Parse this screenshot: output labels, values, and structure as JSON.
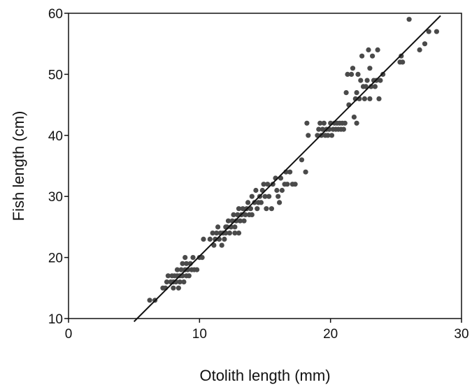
{
  "chart_data": {
    "type": "scatter",
    "title": "",
    "xlabel": "Otolith length (mm)",
    "ylabel": "Fish length (cm)",
    "xlim": [
      0,
      30
    ],
    "ylim": [
      10,
      60
    ],
    "xticks": [
      0,
      10,
      20,
      30
    ],
    "yticks": [
      10,
      20,
      30,
      40,
      50,
      60
    ],
    "grid": false,
    "legend": "none",
    "colors": {
      "points": "#4a4a4a",
      "line": "#111111",
      "axes": "#111111"
    },
    "fit_line": {
      "x": [
        5.0,
        28.4
      ],
      "y": [
        9.5,
        59.6
      ]
    },
    "series": [
      {
        "points": [
          [
            6.2,
            13
          ],
          [
            6.6,
            13
          ],
          [
            7.2,
            15
          ],
          [
            7.4,
            15
          ],
          [
            7.5,
            16
          ],
          [
            7.6,
            17
          ],
          [
            7.8,
            16
          ],
          [
            7.9,
            17
          ],
          [
            8.0,
            15
          ],
          [
            8.0,
            16
          ],
          [
            8.1,
            17
          ],
          [
            8.2,
            16
          ],
          [
            8.3,
            17
          ],
          [
            8.3,
            18
          ],
          [
            8.4,
            15
          ],
          [
            8.5,
            16
          ],
          [
            8.5,
            17
          ],
          [
            8.6,
            18
          ],
          [
            8.7,
            17
          ],
          [
            8.7,
            19
          ],
          [
            8.8,
            16
          ],
          [
            8.9,
            18
          ],
          [
            8.9,
            20
          ],
          [
            9.0,
            17
          ],
          [
            9.0,
            19
          ],
          [
            9.1,
            18
          ],
          [
            9.2,
            17
          ],
          [
            9.3,
            19
          ],
          [
            9.4,
            18
          ],
          [
            9.5,
            20
          ],
          [
            9.6,
            18
          ],
          [
            9.8,
            18
          ],
          [
            10.0,
            20
          ],
          [
            10.2,
            20
          ],
          [
            10.3,
            23
          ],
          [
            10.8,
            23
          ],
          [
            11.0,
            24
          ],
          [
            11.1,
            22
          ],
          [
            11.2,
            23
          ],
          [
            11.3,
            24
          ],
          [
            11.4,
            25
          ],
          [
            11.5,
            23
          ],
          [
            11.6,
            24
          ],
          [
            11.7,
            22
          ],
          [
            11.8,
            24
          ],
          [
            11.9,
            23
          ],
          [
            12.0,
            25
          ],
          [
            12.0,
            24
          ],
          [
            12.1,
            25
          ],
          [
            12.2,
            26
          ],
          [
            12.3,
            24
          ],
          [
            12.4,
            25
          ],
          [
            12.5,
            26
          ],
          [
            12.6,
            27
          ],
          [
            12.7,
            25
          ],
          [
            12.7,
            24
          ],
          [
            12.8,
            26
          ],
          [
            12.9,
            27
          ],
          [
            13.0,
            28
          ],
          [
            13.0,
            24
          ],
          [
            13.1,
            26
          ],
          [
            13.2,
            27
          ],
          [
            13.3,
            28
          ],
          [
            13.4,
            26
          ],
          [
            13.5,
            27
          ],
          [
            13.6,
            28
          ],
          [
            13.7,
            29
          ],
          [
            13.8,
            27
          ],
          [
            13.9,
            28
          ],
          [
            14.0,
            30
          ],
          [
            14.0,
            27
          ],
          [
            14.2,
            29
          ],
          [
            14.3,
            31
          ],
          [
            14.4,
            28
          ],
          [
            14.5,
            29
          ],
          [
            14.6,
            30
          ],
          [
            14.7,
            29
          ],
          [
            14.8,
            31
          ],
          [
            14.9,
            32
          ],
          [
            15.0,
            30
          ],
          [
            15.1,
            28
          ],
          [
            15.2,
            32
          ],
          [
            15.3,
            30
          ],
          [
            15.5,
            28
          ],
          [
            15.6,
            32
          ],
          [
            15.8,
            33
          ],
          [
            15.9,
            31
          ],
          [
            16.0,
            30
          ],
          [
            16.1,
            29
          ],
          [
            16.2,
            33
          ],
          [
            16.3,
            31
          ],
          [
            16.5,
            32
          ],
          [
            16.6,
            34
          ],
          [
            16.7,
            32
          ],
          [
            16.9,
            34
          ],
          [
            17.1,
            32
          ],
          [
            17.3,
            32
          ],
          [
            17.8,
            36
          ],
          [
            18.1,
            34
          ],
          [
            18.2,
            42
          ],
          [
            18.3,
            40
          ],
          [
            19.0,
            40
          ],
          [
            19.1,
            41
          ],
          [
            19.2,
            42
          ],
          [
            19.3,
            40
          ],
          [
            19.4,
            41
          ],
          [
            19.5,
            42
          ],
          [
            19.6,
            40
          ],
          [
            19.7,
            41
          ],
          [
            19.8,
            40
          ],
          [
            19.9,
            41
          ],
          [
            20.0,
            42
          ],
          [
            20.1,
            40
          ],
          [
            20.2,
            41
          ],
          [
            20.3,
            42
          ],
          [
            20.4,
            41
          ],
          [
            20.5,
            42
          ],
          [
            20.6,
            41
          ],
          [
            20.7,
            42
          ],
          [
            20.8,
            41
          ],
          [
            20.9,
            42
          ],
          [
            21.0,
            41
          ],
          [
            21.1,
            42
          ],
          [
            21.2,
            47
          ],
          [
            21.3,
            50
          ],
          [
            21.4,
            45
          ],
          [
            21.6,
            50
          ],
          [
            21.7,
            51
          ],
          [
            21.8,
            43
          ],
          [
            21.9,
            46
          ],
          [
            22.0,
            42
          ],
          [
            22.0,
            47
          ],
          [
            22.1,
            50
          ],
          [
            22.2,
            46
          ],
          [
            22.3,
            49
          ],
          [
            22.4,
            53
          ],
          [
            22.5,
            48
          ],
          [
            22.6,
            46
          ],
          [
            22.7,
            48
          ],
          [
            22.8,
            49
          ],
          [
            22.9,
            54
          ],
          [
            23.0,
            46
          ],
          [
            23.0,
            51
          ],
          [
            23.1,
            48
          ],
          [
            23.2,
            53
          ],
          [
            23.3,
            49
          ],
          [
            23.4,
            48
          ],
          [
            23.5,
            49
          ],
          [
            23.6,
            54
          ],
          [
            23.7,
            46
          ],
          [
            23.8,
            49
          ],
          [
            24.0,
            50
          ],
          [
            25.3,
            52
          ],
          [
            25.4,
            53
          ],
          [
            25.5,
            52
          ],
          [
            26.0,
            59
          ],
          [
            26.8,
            54
          ],
          [
            27.2,
            55
          ],
          [
            27.5,
            57
          ],
          [
            28.1,
            57
          ]
        ]
      }
    ]
  }
}
